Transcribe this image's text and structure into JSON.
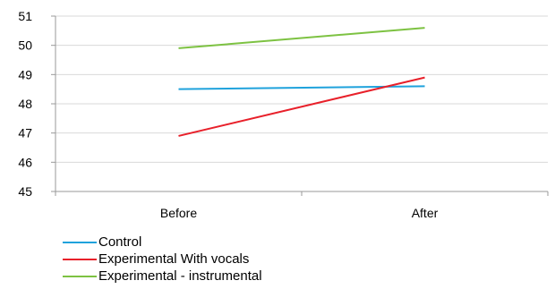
{
  "chart_data": {
    "type": "line",
    "categories": [
      "Before",
      "After"
    ],
    "series": [
      {
        "name": "Control",
        "values": [
          48.5,
          48.6
        ],
        "color": "#1fa2dc"
      },
      {
        "name": "Experimental With vocals",
        "values": [
          46.9,
          48.9
        ],
        "color": "#e8202a"
      },
      {
        "name": "Experimental - instrumental",
        "values": [
          49.9,
          50.6
        ],
        "color": "#7dc242"
      }
    ],
    "title": "",
    "xlabel": "",
    "ylabel": "",
    "ylim": [
      45,
      51
    ],
    "yticks": [
      "45",
      "46",
      "47",
      "48",
      "49",
      "50",
      "51"
    ],
    "grid": true,
    "legend_position": "bottom-left"
  }
}
